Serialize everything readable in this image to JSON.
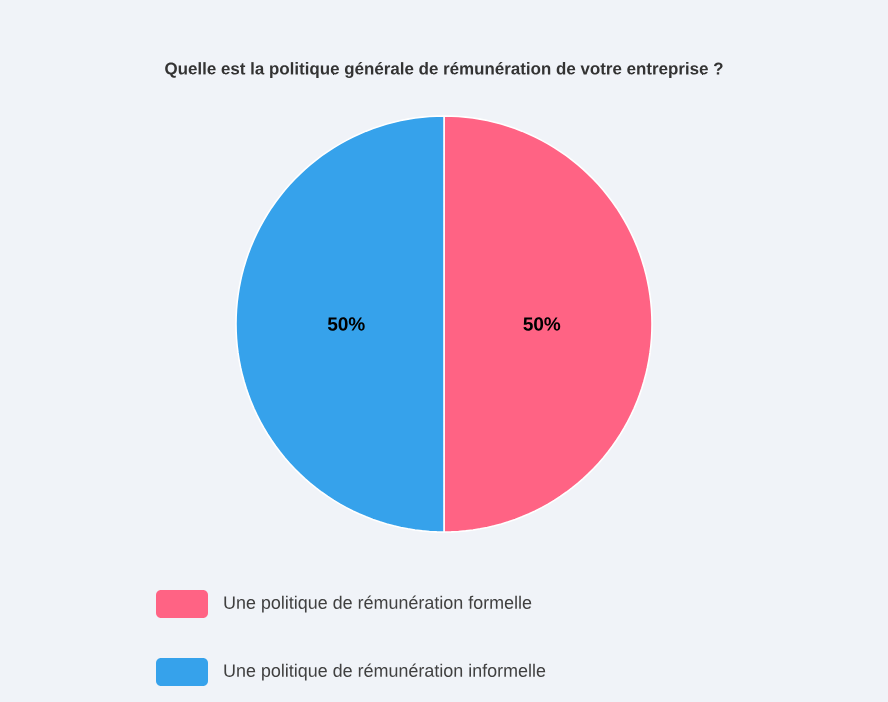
{
  "chart_data": {
    "type": "pie",
    "title": "Quelle est la politique générale de rémunération de votre entreprise ?",
    "categories": [
      "Une politique de rémunération formelle",
      "Une politique de rémunération informelle"
    ],
    "values": [
      50,
      50
    ],
    "colors": [
      "#ff6384",
      "#36a2eb"
    ],
    "value_labels": [
      "50%",
      "50%"
    ],
    "legend": "bottom"
  }
}
